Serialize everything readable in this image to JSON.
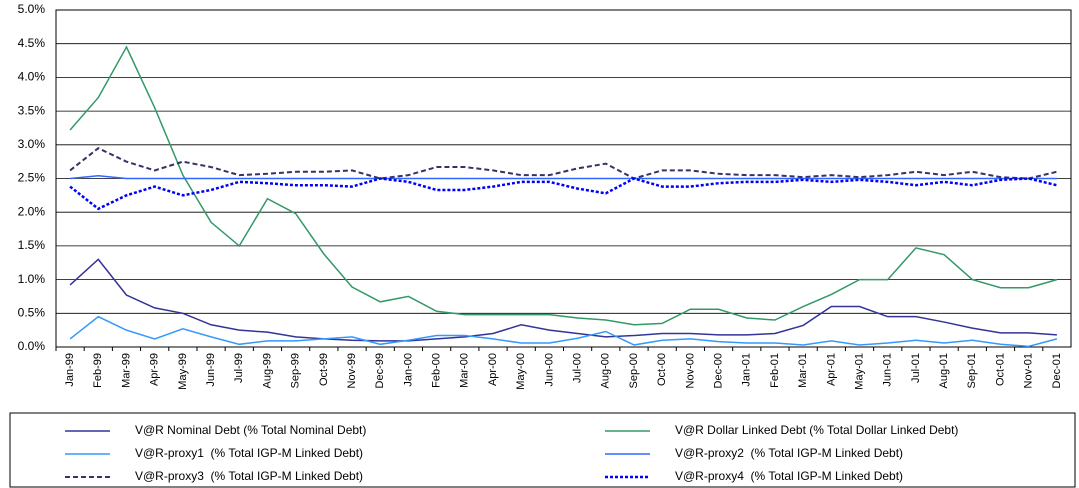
{
  "chart_data": {
    "type": "line",
    "categories": [
      "Jan-99",
      "Feb-99",
      "Mar-99",
      "Apr-99",
      "May-99",
      "Jun-99",
      "Jul-99",
      "Aug-99",
      "Sep-99",
      "Oct-99",
      "Nov-99",
      "Dec-99",
      "Jan-00",
      "Feb-00",
      "Mar-00",
      "Apr-00",
      "May-00",
      "Jun-00",
      "Jul-00",
      "Aug-00",
      "Sep-00",
      "Oct-00",
      "Nov-00",
      "Dec-00",
      "Jan-01",
      "Feb-01",
      "Mar-01",
      "Apr-01",
      "May-01",
      "Jun-01",
      "Jul-01",
      "Aug-01",
      "Sep-01",
      "Oct-01",
      "Nov-01",
      "Dec-01"
    ],
    "series": [
      {
        "name": "V@R Nominal Debt (% Total Nominal Debt)",
        "color": "#333399",
        "style": "solid",
        "values": [
          0.92,
          1.3,
          0.77,
          0.58,
          0.5,
          0.33,
          0.25,
          0.22,
          0.15,
          0.12,
          0.1,
          0.09,
          0.09,
          0.12,
          0.15,
          0.2,
          0.33,
          0.25,
          0.2,
          0.15,
          0.17,
          0.2,
          0.2,
          0.18,
          0.18,
          0.2,
          0.32,
          0.6,
          0.6,
          0.45,
          0.45,
          0.37,
          0.28,
          0.21,
          0.21,
          0.18
        ]
      },
      {
        "name": "V@R Dollar Linked Debt (% Total Dollar Linked Debt)",
        "color": "#339966",
        "style": "solid",
        "values": [
          3.22,
          3.7,
          4.45,
          3.55,
          2.55,
          1.85,
          1.5,
          2.2,
          1.98,
          1.38,
          0.89,
          0.67,
          0.75,
          0.53,
          0.48,
          0.48,
          0.48,
          0.48,
          0.43,
          0.4,
          0.33,
          0.35,
          0.56,
          0.56,
          0.43,
          0.4,
          0.6,
          0.78,
          1.0,
          1.0,
          1.47,
          1.37,
          1.0,
          0.88,
          0.88,
          1.0
        ]
      },
      {
        "name": "V@R-proxy1  (% Total IGP-M Linked Debt)",
        "color": "#3399ff",
        "style": "solid",
        "values": [
          0.12,
          0.45,
          0.25,
          0.12,
          0.27,
          0.15,
          0.04,
          0.09,
          0.09,
          0.12,
          0.15,
          0.04,
          0.1,
          0.17,
          0.17,
          0.12,
          0.06,
          0.06,
          0.13,
          0.23,
          0.03,
          0.1,
          0.12,
          0.08,
          0.06,
          0.06,
          0.03,
          0.09,
          0.03,
          0.06,
          0.1,
          0.06,
          0.1,
          0.04,
          0.01,
          0.12
        ]
      },
      {
        "name": "V@R-proxy2  (% Total IGP-M Linked Debt)",
        "color": "#3366ff",
        "style": "solid",
        "values": [
          2.5,
          2.54,
          2.5,
          2.5,
          2.5,
          2.5,
          2.5,
          2.5,
          2.5,
          2.5,
          2.5,
          2.5,
          2.5,
          2.5,
          2.5,
          2.5,
          2.5,
          2.5,
          2.5,
          2.5,
          2.5,
          2.5,
          2.5,
          2.5,
          2.5,
          2.5,
          2.5,
          2.5,
          2.5,
          2.5,
          2.5,
          2.5,
          2.5,
          2.5,
          2.5,
          2.5
        ]
      },
      {
        "name": "V@R-proxy3  (% Total IGP-M Linked Debt)",
        "color": "#333366",
        "style": "dashed",
        "values": [
          2.62,
          2.95,
          2.75,
          2.62,
          2.75,
          2.67,
          2.55,
          2.57,
          2.6,
          2.6,
          2.62,
          2.5,
          2.55,
          2.67,
          2.67,
          2.62,
          2.55,
          2.55,
          2.65,
          2.72,
          2.5,
          2.62,
          2.62,
          2.57,
          2.55,
          2.55,
          2.52,
          2.55,
          2.52,
          2.55,
          2.6,
          2.55,
          2.6,
          2.52,
          2.5,
          2.6
        ]
      },
      {
        "name": "V@R-proxy4  (% Total IGP-M Linked Debt)",
        "color": "#0000ff",
        "style": "dotted",
        "values": [
          2.38,
          2.05,
          2.25,
          2.38,
          2.25,
          2.33,
          2.45,
          2.43,
          2.4,
          2.4,
          2.38,
          2.5,
          2.45,
          2.33,
          2.33,
          2.38,
          2.45,
          2.45,
          2.35,
          2.28,
          2.5,
          2.38,
          2.38,
          2.43,
          2.45,
          2.45,
          2.48,
          2.45,
          2.48,
          2.45,
          2.4,
          2.45,
          2.4,
          2.48,
          2.5,
          2.4
        ]
      }
    ],
    "ylim": [
      0,
      5
    ],
    "yticks": [
      {
        "value": 0,
        "label": "0.0%"
      },
      {
        "value": 0.5,
        "label": "0.5%"
      },
      {
        "value": 1,
        "label": "1.0%"
      },
      {
        "value": 1.5,
        "label": "1.5%"
      },
      {
        "value": 2,
        "label": "2.0%"
      },
      {
        "value": 2.5,
        "label": "2.5%"
      },
      {
        "value": 3,
        "label": "3.0%"
      },
      {
        "value": 3.5,
        "label": "3.5%"
      },
      {
        "value": 4,
        "label": "4.0%"
      },
      {
        "value": 4.5,
        "label": "4.5%"
      },
      {
        "value": 5,
        "label": "5.0%"
      }
    ],
    "grid": true,
    "legend": "bottom"
  }
}
